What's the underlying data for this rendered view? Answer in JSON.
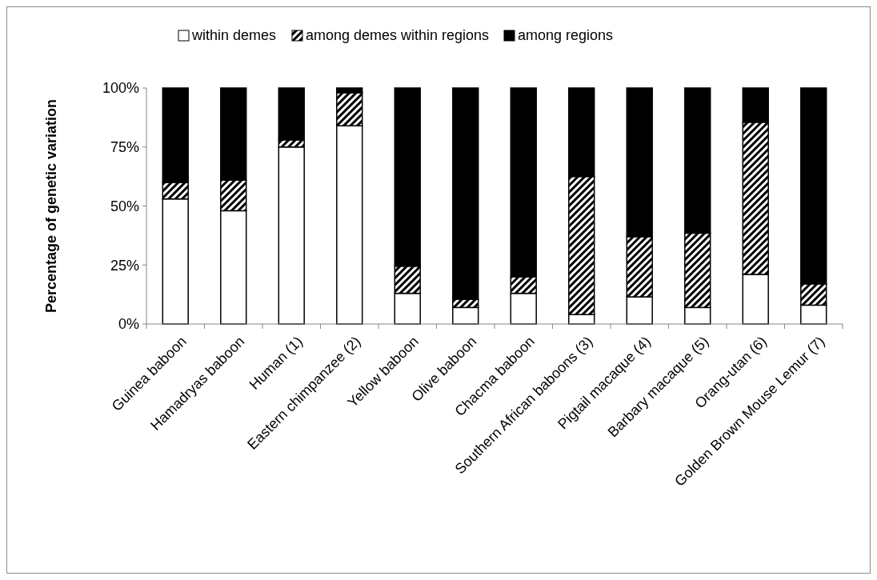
{
  "chart_data": {
    "type": "bar",
    "stacked": true,
    "ylabel": "Percentage of genetic variation",
    "categories": [
      "Guinea baboon",
      "Hamadryas baboon",
      "Human (1)",
      "Eastern chimpanzee (2)",
      "Yellow baboon",
      "Olive baboon",
      "Chacma baboon",
      "Southern African baboons (3)",
      "Pigtail macaque (4)",
      "Barbary macaque (5)",
      "Orang-utan (6)",
      "Golden Brown Mouse Lemur (7)"
    ],
    "series": [
      {
        "name": "within demes",
        "color": "#ffffff",
        "values": [
          53,
          48,
          75,
          84,
          13,
          7,
          13,
          4,
          11.5,
          7,
          21,
          8
        ]
      },
      {
        "name": "among demes within regions",
        "color": "#000000",
        "values": [
          7,
          13,
          3,
          14,
          11.5,
          3.5,
          7,
          58.5,
          25.5,
          31.5,
          64.5,
          9
        ]
      },
      {
        "name": "among regions",
        "color": "#000000",
        "values": [
          40,
          39,
          22,
          2,
          75.5,
          89.5,
          80,
          37.5,
          63,
          61.5,
          14.5,
          83
        ]
      }
    ],
    "ylim": [
      0,
      100
    ],
    "yticks": [
      {
        "value": 0,
        "label": "0%"
      },
      {
        "value": 25,
        "label": "25%"
      },
      {
        "value": 50,
        "label": "50%"
      },
      {
        "value": 75,
        "label": "75%"
      },
      {
        "value": 100,
        "label": "100%"
      }
    ],
    "legend": "top",
    "grid": false
  }
}
